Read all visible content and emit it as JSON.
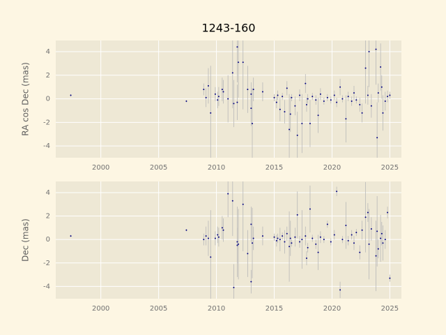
{
  "chart_data": [
    {
      "type": "scatter",
      "title": "1243-160",
      "y_label": "RA cos Dec (mas)",
      "color": "#000080",
      "error_color": "#b8b8b8",
      "grid": true,
      "xlim": [
        1996.1,
        2026.0
      ],
      "xticks": [
        2000,
        2005,
        2010,
        2015,
        2020,
        2025
      ],
      "ylim": [
        -5.0,
        4.95
      ],
      "yticks": [
        -4,
        -2,
        0,
        2,
        4
      ],
      "x": [
        1997.4,
        2007.4,
        2008.9,
        2009.1,
        2009.3,
        2009.5,
        2009.9,
        2010.1,
        2010.2,
        2010.5,
        2010.6,
        2011.0,
        2011.4,
        2011.5,
        2011.8,
        2011.8,
        2011.9,
        2012.3,
        2012.7,
        2013.0,
        2013.0,
        2013.1,
        2013.2,
        2014.0,
        2015.0,
        2015.2,
        2015.3,
        2015.5,
        2015.7,
        2015.9,
        2016.1,
        2016.3,
        2016.4,
        2016.5,
        2016.8,
        2017.0,
        2017.2,
        2017.4,
        2017.7,
        2017.8,
        2017.9,
        2018.1,
        2018.3,
        2018.6,
        2018.8,
        2019.0,
        2019.3,
        2019.6,
        2019.9,
        2020.2,
        2020.4,
        2020.7,
        2020.9,
        2021.2,
        2021.4,
        2021.7,
        2021.9,
        2022.1,
        2022.4,
        2022.6,
        2022.9,
        2023.1,
        2023.2,
        2023.4,
        2023.8,
        2023.9,
        2024.0,
        2024.2,
        2024.3,
        2024.4,
        2024.6,
        2024.8,
        2025.0
      ],
      "values": [
        0.3,
        -0.2,
        0.8,
        0.1,
        1.1,
        -1.2,
        0.4,
        -0.1,
        0.2,
        0.8,
        0.6,
        0.0,
        2.2,
        -0.4,
        4.4,
        -0.3,
        3.1,
        3.1,
        0.8,
        -0.8,
        0.4,
        -2.1,
        0.8,
        0.6,
        0.1,
        -0.3,
        0.3,
        -0.9,
        0.2,
        -1.1,
        0.9,
        -2.6,
        -1.3,
        0.1,
        -0.6,
        -3.1,
        0.3,
        -2.1,
        1.3,
        -0.5,
        0.0,
        -2.1,
        0.2,
        -0.1,
        -1.4,
        0.4,
        -0.2,
        0.1,
        -0.1,
        0.3,
        -0.3,
        1.0,
        0.0,
        -1.7,
        0.2,
        -0.2,
        0.5,
        -0.1,
        -0.5,
        -1.2,
        2.6,
        0.3,
        4.0,
        -0.6,
        4.2,
        -3.3,
        0.5,
        2.7,
        1.0,
        -1.2,
        -0.2,
        0.2,
        0.3
      ],
      "errors": [
        0.1,
        0.1,
        0.5,
        0.8,
        1.5,
        4,
        0.6,
        0.7,
        0.8,
        1,
        1,
        2,
        3,
        2,
        3,
        1.5,
        3,
        4,
        2,
        1.5,
        1,
        3,
        1,
        0.8,
        0.3,
        0.5,
        0.4,
        1,
        0.3,
        1,
        0.6,
        3,
        1.5,
        0.3,
        0.8,
        2,
        0.5,
        2.5,
        0.8,
        0.6,
        0.4,
        2,
        0.3,
        0.4,
        1.5,
        0.5,
        0.3,
        0.3,
        0.3,
        0.4,
        0.4,
        0.7,
        0.3,
        2,
        0.4,
        0.4,
        0.6,
        0.3,
        0.6,
        0.8,
        3,
        0.8,
        3,
        1,
        3,
        3,
        0.8,
        2,
        1,
        1.5,
        0.8,
        0.5,
        0.3
      ]
    },
    {
      "type": "scatter",
      "y_label": "Dec (mas)",
      "color": "#000080",
      "error_color": "#b8b8b8",
      "grid": true,
      "xlim": [
        1996.1,
        2026.0
      ],
      "xticks": [
        2000,
        2005,
        2010,
        2015,
        2020,
        2025
      ],
      "ylim": [
        -5.05,
        4.95
      ],
      "yticks": [
        -4,
        -2,
        0,
        2,
        4
      ],
      "x": [
        1997.4,
        2007.4,
        2008.9,
        2009.1,
        2009.3,
        2009.5,
        2009.9,
        2010.1,
        2010.2,
        2010.5,
        2010.6,
        2011.0,
        2011.4,
        2011.5,
        2011.8,
        2011.8,
        2011.9,
        2012.3,
        2012.7,
        2013.0,
        2013.0,
        2013.1,
        2013.2,
        2014.0,
        2015.0,
        2015.2,
        2015.3,
        2015.5,
        2015.7,
        2015.9,
        2016.1,
        2016.3,
        2016.4,
        2016.5,
        2016.8,
        2017.0,
        2017.2,
        2017.4,
        2017.7,
        2017.8,
        2017.9,
        2018.1,
        2018.3,
        2018.6,
        2018.8,
        2019.0,
        2019.3,
        2019.6,
        2019.9,
        2020.2,
        2020.4,
        2020.7,
        2020.9,
        2021.2,
        2021.4,
        2021.7,
        2021.9,
        2022.1,
        2022.4,
        2022.6,
        2022.9,
        2023.1,
        2023.2,
        2023.4,
        2023.8,
        2023.9,
        2024.0,
        2024.2,
        2024.3,
        2024.4,
        2024.6,
        2024.8,
        2025.0
      ],
      "values": [
        0.3,
        0.8,
        0.0,
        0.3,
        0.1,
        -1.5,
        0.1,
        0.4,
        0.2,
        1.0,
        0.8,
        3.9,
        3.3,
        -4.1,
        -0.2,
        -0.5,
        -0.4,
        3.0,
        -1.2,
        1.3,
        -3.6,
        -0.3,
        0.1,
        0.3,
        0.2,
        -0.1,
        0.1,
        0.0,
        0.3,
        -0.2,
        0.5,
        -0.6,
        0.1,
        -0.3,
        0.2,
        2.1,
        -0.2,
        0.0,
        0.3,
        -1.6,
        -0.7,
        2.6,
        0.1,
        -0.4,
        -1.1,
        0.2,
        0.0,
        1.3,
        -0.2,
        0.4,
        4.1,
        -4.3,
        0.0,
        1.2,
        -0.1,
        0.4,
        -0.3,
        0.6,
        -1.1,
        0.8,
        1.9,
        2.3,
        -0.4,
        0.9,
        -1.4,
        0.7,
        -0.8,
        0.1,
        0.5,
        -0.3,
        0.0,
        2.3,
        -3.3
      ],
      "errors": [
        0.1,
        0.1,
        0.5,
        0.8,
        1.5,
        4,
        0.6,
        0.7,
        0.8,
        1,
        1,
        2,
        3,
        2,
        3,
        1.5,
        3,
        4,
        2,
        1.5,
        1,
        3,
        1,
        0.8,
        0.3,
        0.5,
        0.4,
        1,
        0.3,
        1,
        0.6,
        3,
        1.5,
        0.3,
        0.8,
        2,
        0.5,
        2.5,
        0.8,
        0.6,
        0.4,
        2,
        0.3,
        0.4,
        1.5,
        0.5,
        0.3,
        0.3,
        0.3,
        0.4,
        0.4,
        0.7,
        0.3,
        2,
        0.4,
        0.4,
        0.6,
        0.3,
        0.6,
        0.8,
        3,
        0.8,
        3,
        1,
        3,
        3,
        0.8,
        2,
        1,
        1.5,
        0.8,
        0.5,
        0.3
      ]
    }
  ]
}
